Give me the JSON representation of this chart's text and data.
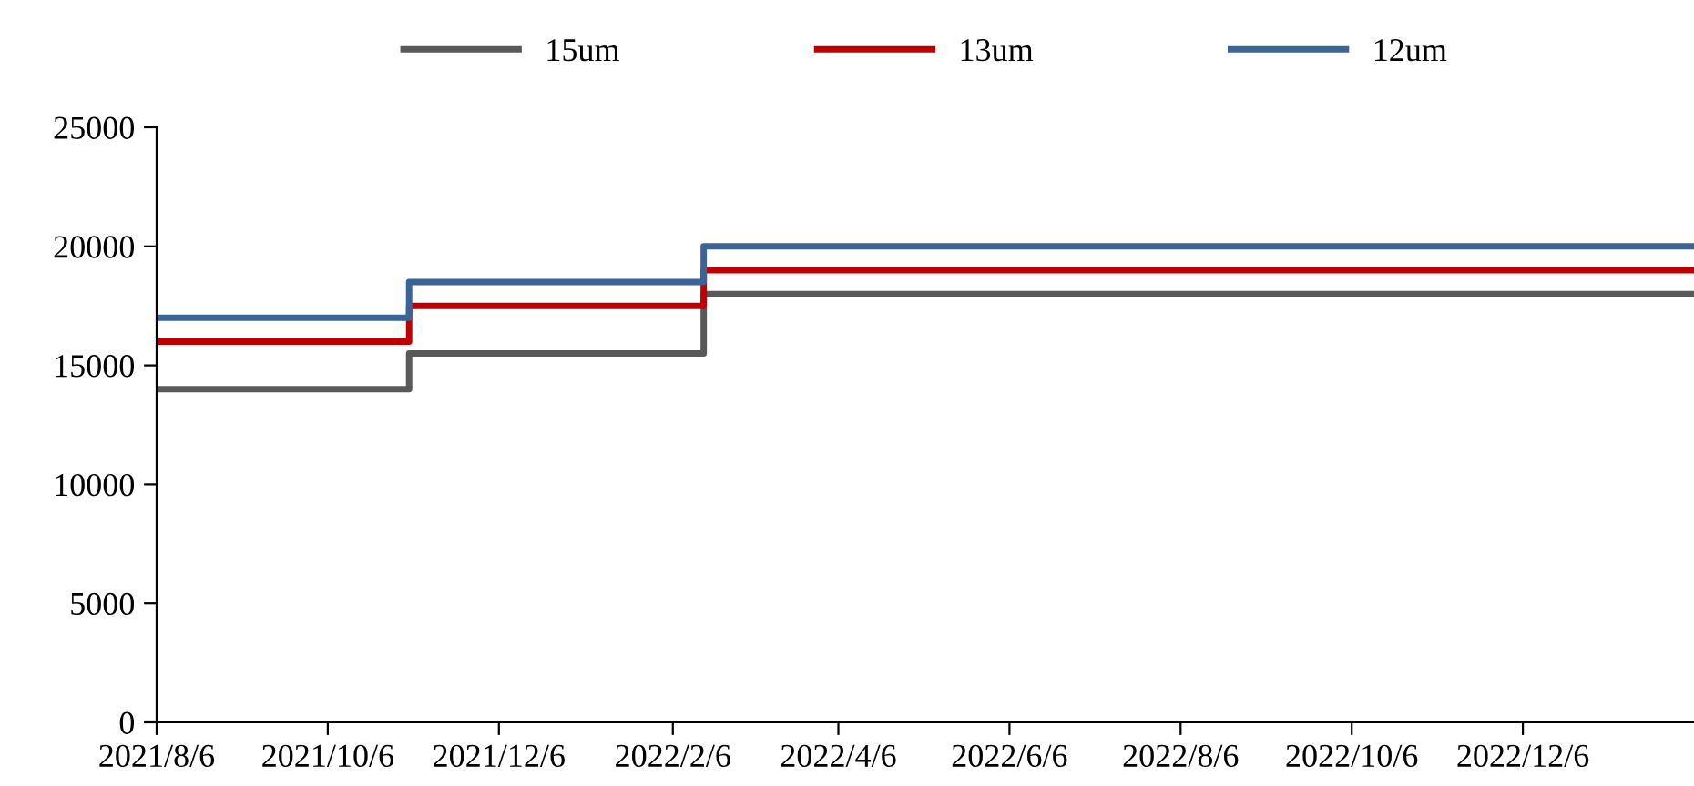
{
  "chart_data": {
    "type": "step",
    "x": [
      "2021-08-06",
      "2021-11-04",
      "2022-02-17",
      "2023-02-05"
    ],
    "series": [
      {
        "name": "15um",
        "color": "#595959",
        "values": [
          14000,
          15500,
          18000,
          18000
        ]
      },
      {
        "name": "13um",
        "color": "#c00000",
        "values": [
          16000,
          17500,
          19000,
          19000
        ]
      },
      {
        "name": "12um",
        "color": "#3a6397",
        "values": [
          17000,
          18500,
          20000,
          20000
        ]
      }
    ],
    "xlim": [
      "2021-08-06",
      "2023-02-05"
    ],
    "xticks": [
      {
        "value": "2021-08-06",
        "label": "2021/8/6"
      },
      {
        "value": "2021-10-06",
        "label": "2021/10/6"
      },
      {
        "value": "2021-12-06",
        "label": "2021/12/6"
      },
      {
        "value": "2022-02-06",
        "label": "2022/2/6"
      },
      {
        "value": "2022-04-06",
        "label": "2022/4/6"
      },
      {
        "value": "2022-06-06",
        "label": "2022/6/6"
      },
      {
        "value": "2022-08-06",
        "label": "2022/8/6"
      },
      {
        "value": "2022-10-06",
        "label": "2022/10/6"
      },
      {
        "value": "2022-12-06",
        "label": "2022/12/6"
      }
    ],
    "ylim": [
      0,
      25000
    ],
    "yticks": [
      0,
      5000,
      10000,
      15000,
      20000,
      25000
    ],
    "grid": false,
    "legend": "top",
    "line_style": "solid",
    "marker": "none"
  }
}
